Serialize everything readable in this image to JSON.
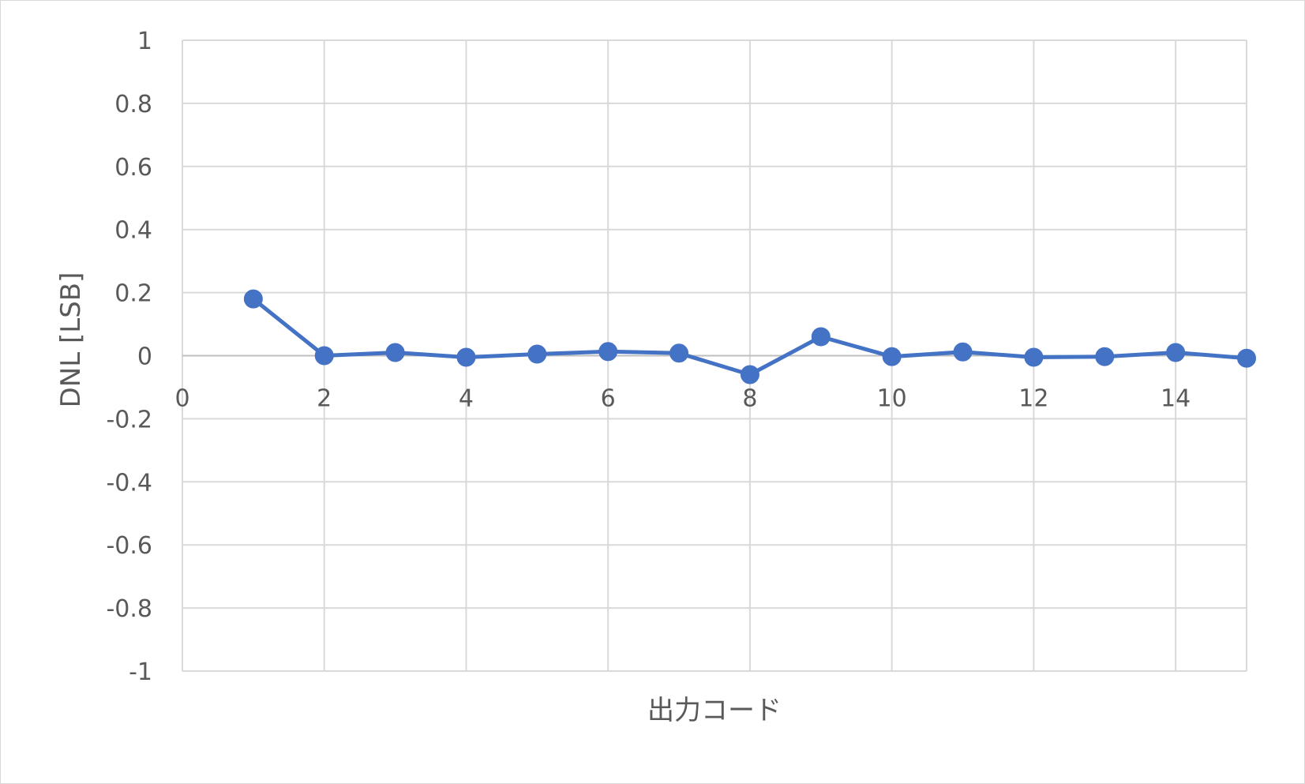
{
  "chart_data": {
    "type": "line",
    "title": "",
    "xlabel": "出力コード",
    "ylabel": "DNL [LSB]",
    "xlim": [
      0,
      15
    ],
    "ylim": [
      -1,
      1
    ],
    "x_ticks": [
      0,
      2,
      4,
      6,
      8,
      10,
      12,
      14
    ],
    "y_ticks": [
      1,
      0.8,
      0.6,
      0.4,
      0.2,
      0,
      -0.2,
      -0.4,
      -0.6,
      -0.8,
      -1
    ],
    "x_tick_labels": [
      "0",
      "2",
      "4",
      "6",
      "8",
      "10",
      "12",
      "14"
    ],
    "y_tick_labels": [
      "1",
      "0.8",
      "0.6",
      "0.4",
      "0.2",
      "0",
      "-0.2",
      "-0.4",
      "-0.6",
      "-0.8",
      "-1"
    ],
    "grid": true,
    "legend": "none",
    "series": [
      {
        "name": "DNL",
        "color": "#4472c4",
        "x": [
          1,
          2,
          3,
          4,
          5,
          6,
          7,
          8,
          9,
          10,
          11,
          12,
          13,
          14,
          15
        ],
        "values": [
          0.18,
          0.0,
          0.01,
          -0.005,
          0.005,
          0.013,
          0.008,
          -0.06,
          0.06,
          -0.003,
          0.012,
          -0.005,
          -0.003,
          0.01,
          -0.008
        ]
      }
    ]
  }
}
